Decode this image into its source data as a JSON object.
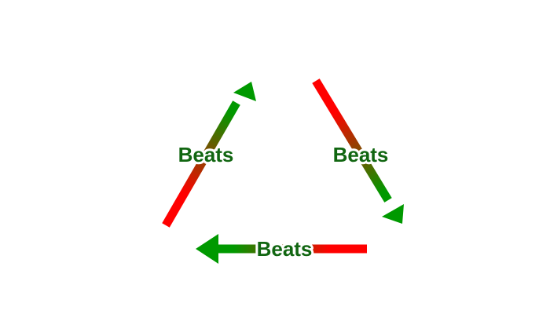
{
  "diagram": {
    "colors": {
      "start": "#ff0000",
      "end": "#009900",
      "label": "#116611",
      "label_halo": "#ffffff"
    },
    "arrows": [
      {
        "id": "left",
        "label": "Beats",
        "direction": "up-right"
      },
      {
        "id": "right",
        "label": "Beats",
        "direction": "down-right"
      },
      {
        "id": "bottom",
        "label": "Beats",
        "direction": "left"
      }
    ]
  }
}
